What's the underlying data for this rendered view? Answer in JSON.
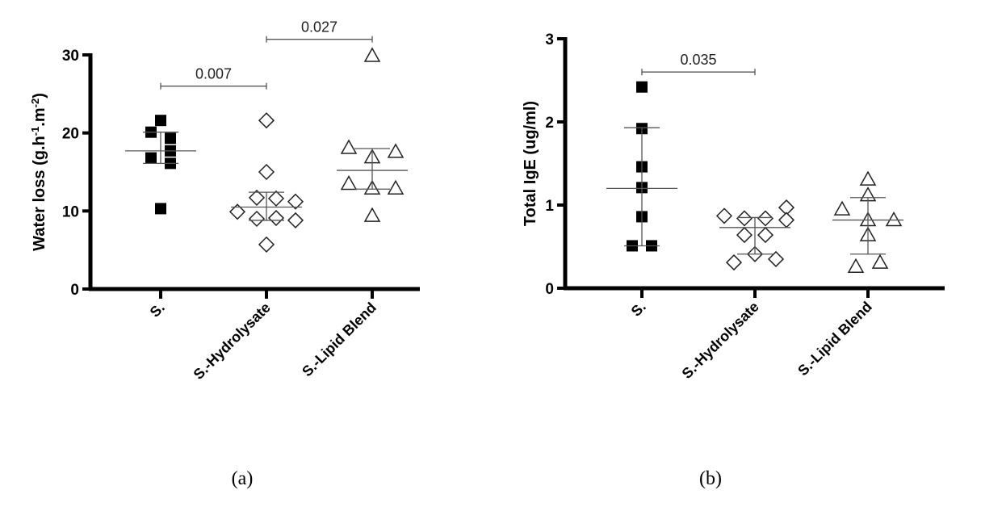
{
  "chart_data": [
    {
      "type": "scatter",
      "panel_label": "(a)",
      "panel_letter": "a",
      "ylabel": "Water loss (g.h-1.m-2)",
      "ylabel_parts": [
        "Water loss (g.h",
        "-1",
        ".m",
        "-2",
        ")"
      ],
      "ylim": [
        0,
        30
      ],
      "yticks": [
        0,
        10,
        20,
        30
      ],
      "categories": [
        "S.",
        "S.-Hydrolysate",
        "S.-Lipid Blend"
      ],
      "series": [
        {
          "category": "S.",
          "marker": "filled-square",
          "values": [
            21.6,
            20.1,
            19.3,
            17.7,
            16.8,
            16.1,
            10.3
          ],
          "mean": 17.7,
          "sd_upper": 20.1,
          "sd_lower": 16.1
        },
        {
          "category": "S.-Hydrolysate",
          "marker": "open-diamond",
          "values": [
            21.6,
            15.0,
            11.7,
            11.6,
            11.2,
            9.9,
            9.0,
            9.1,
            8.8,
            5.7
          ],
          "mean": 10.5,
          "sd_upper": 12.4,
          "sd_lower": 8.8
        },
        {
          "category": "S.-Lipid Blend",
          "marker": "open-triangle",
          "values": [
            29.9,
            18.1,
            17.6,
            16.9,
            13.5,
            12.9,
            12.9,
            9.4
          ],
          "mean": 15.2,
          "sd_upper": 18.0,
          "sd_lower": 12.8
        }
      ],
      "comparisons": [
        {
          "from": "S.",
          "to": "S.-Hydrolysate",
          "label": "0.007",
          "y": 26
        },
        {
          "from": "S.-Hydrolysate",
          "to": "S.-Lipid Blend",
          "label": "0.027",
          "y": 32
        }
      ],
      "grid": false
    },
    {
      "type": "scatter",
      "panel_label": "(b)",
      "panel_letter": "b",
      "ylabel": "Total IgE (ug/ml)",
      "ylim": [
        0,
        3
      ],
      "yticks": [
        0,
        1,
        2,
        3
      ],
      "categories": [
        "S.",
        "S.-Hydrolysate",
        "S.-Lipid Blend"
      ],
      "series": [
        {
          "category": "S.",
          "marker": "filled-square",
          "values": [
            2.42,
            1.92,
            1.46,
            1.21,
            0.86,
            0.51,
            0.51
          ],
          "mean": 1.2,
          "sd_upper": 1.93,
          "sd_lower": 0.51
        },
        {
          "category": "S.-Hydrolysate",
          "marker": "open-diamond",
          "values": [
            0.87,
            0.84,
            0.84,
            0.97,
            0.82,
            0.64,
            0.64,
            0.41,
            0.31,
            0.35
          ],
          "mean": 0.73,
          "sd_upper": 0.85,
          "sd_lower": 0.41
        },
        {
          "category": "S.-Lipid Blend",
          "marker": "open-triangle",
          "values": [
            1.31,
            1.12,
            0.95,
            0.82,
            0.82,
            0.64,
            0.26,
            0.31
          ],
          "mean": 0.82,
          "sd_upper": 1.09,
          "sd_lower": 0.41
        }
      ],
      "comparisons": [
        {
          "from": "S.",
          "to": "S.-Hydrolysate",
          "label": "0.035",
          "y": 2.6
        }
      ],
      "grid": false
    }
  ]
}
